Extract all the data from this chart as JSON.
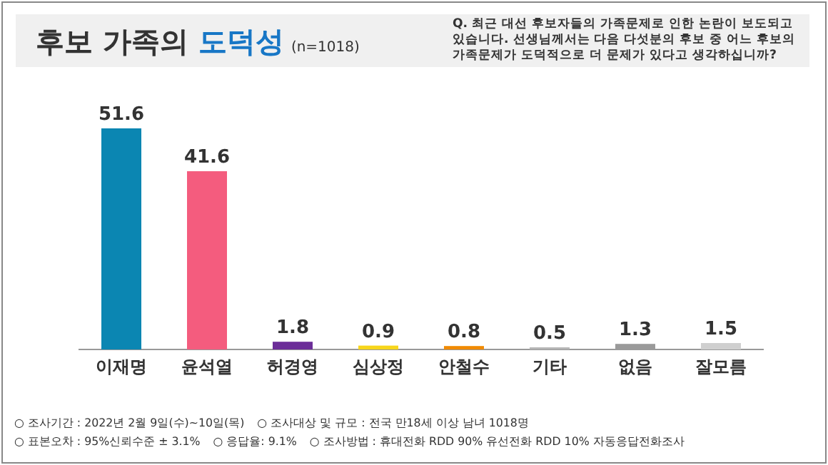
{
  "chart_data": {
    "type": "bar",
    "title": "후보 가족의 도덕성",
    "subtitle": "(n=1018)",
    "categories": [
      "이재명",
      "윤석열",
      "허경영",
      "심상정",
      "안철수",
      "기타",
      "없음",
      "잘모름"
    ],
    "values": [
      51.6,
      41.6,
      1.8,
      0.9,
      0.8,
      0.5,
      1.3,
      1.5
    ],
    "colors": [
      "#0b86b2",
      "#f45c7e",
      "#6b2d98",
      "#f7d61c",
      "#f08a00",
      "#b5b5b5",
      "#9a9a9a",
      "#cfcfcf"
    ],
    "data_labels": true,
    "annotations": [
      "Q. 최근 대선 후보자들의 가족문제로 인한 논란이 보도되고 있습니다. 선생님께서는 다음 다섯분의 후보 중 어느 후보의 가족문제가 도덕적으로 더 문제가 있다고 생각하십니까?",
      "○ 조사기간 : 2022년 2월 9일(수)~10일(목)",
      "○ 조사대상 및 규모 : 전국 만18세 이상 남녀 1018명",
      "○ 표본오차 : 95%신뢰수준 ± 3.1%",
      "○ 응답율: 9.1%",
      "○ 조사방법 : 휴대전화 RDD 90% 유선전화 RDD 10% 자동응답전화조사"
    ]
  }
}
